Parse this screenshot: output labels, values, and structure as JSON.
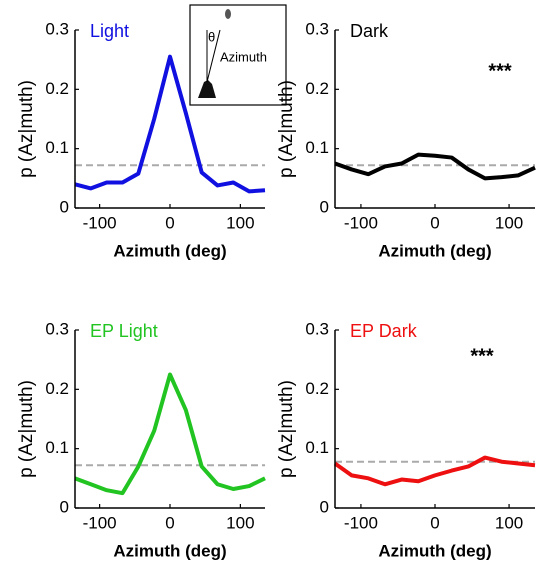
{
  "chart_data": [
    {
      "type": "line",
      "title": "Light",
      "annotation": null,
      "x": [
        -135,
        -112.5,
        -90,
        -67.5,
        -45,
        -22.5,
        0,
        22.5,
        45,
        67.5,
        90,
        112.5,
        135
      ],
      "series": [
        {
          "color": "#1010e0",
          "values": [
            0.04,
            0.033,
            0.043,
            0.043,
            0.058,
            0.15,
            0.255,
            0.16,
            0.06,
            0.038,
            0.043,
            0.028,
            0.03
          ]
        }
      ],
      "reference_line": 0.072,
      "xlabel": "Azimuth (deg)",
      "ylabel": "p (Az|muth)",
      "xlim": [
        -135,
        135
      ],
      "ylim": [
        0,
        0.3
      ],
      "xticks": [
        -100,
        0,
        100
      ],
      "yticks": [
        0,
        0.1,
        0.2,
        0.3
      ],
      "inset": {
        "angle_label": "θ",
        "label": "Azimuth"
      }
    },
    {
      "type": "line",
      "title": "Dark",
      "annotation": "***",
      "x": [
        -135,
        -112.5,
        -90,
        -67.5,
        -45,
        -22.5,
        0,
        22.5,
        45,
        67.5,
        90,
        112.5,
        135
      ],
      "series": [
        {
          "color": "#000000",
          "values": [
            0.075,
            0.065,
            0.057,
            0.07,
            0.075,
            0.09,
            0.088,
            0.085,
            0.065,
            0.05,
            0.052,
            0.055,
            0.068
          ]
        }
      ],
      "reference_line": 0.072,
      "xlabel": "Azimuth (deg)",
      "ylabel": "p (Az|muth)",
      "xlim": [
        -135,
        135
      ],
      "ylim": [
        0,
        0.3
      ],
      "xticks": [
        -100,
        0,
        100
      ],
      "yticks": [
        0,
        0.1,
        0.2,
        0.3
      ]
    },
    {
      "type": "line",
      "title": "EP Light",
      "annotation": null,
      "x": [
        -135,
        -112.5,
        -90,
        -67.5,
        -45,
        -22.5,
        0,
        22.5,
        45,
        67.5,
        90,
        112.5,
        135
      ],
      "series": [
        {
          "color": "#22c422",
          "values": [
            0.05,
            0.04,
            0.03,
            0.025,
            0.07,
            0.13,
            0.225,
            0.165,
            0.07,
            0.04,
            0.032,
            0.037,
            0.05
          ]
        }
      ],
      "reference_line": 0.072,
      "xlabel": "Azimuth (deg)",
      "ylabel": "p (Az|muth)",
      "xlim": [
        -135,
        135
      ],
      "ylim": [
        0,
        0.3
      ],
      "xticks": [
        -100,
        0,
        100
      ],
      "yticks": [
        0,
        0.1,
        0.2,
        0.3
      ]
    },
    {
      "type": "line",
      "title": "EP Dark",
      "annotation": "***",
      "x": [
        -135,
        -112.5,
        -90,
        -67.5,
        -45,
        -22.5,
        0,
        22.5,
        45,
        67.5,
        90,
        112.5,
        135
      ],
      "series": [
        {
          "color": "#ee1010",
          "values": [
            0.075,
            0.055,
            0.05,
            0.04,
            0.048,
            0.045,
            0.055,
            0.063,
            0.07,
            0.085,
            0.078,
            0.075,
            0.072
          ]
        }
      ],
      "reference_line": 0.078,
      "xlabel": "Azimuth (deg)",
      "ylabel": "p (Az|muth)",
      "xlim": [
        -135,
        135
      ],
      "ylim": [
        0,
        0.3
      ],
      "xticks": [
        -100,
        0,
        100
      ],
      "yticks": [
        0,
        0.1,
        0.2,
        0.3
      ]
    }
  ]
}
